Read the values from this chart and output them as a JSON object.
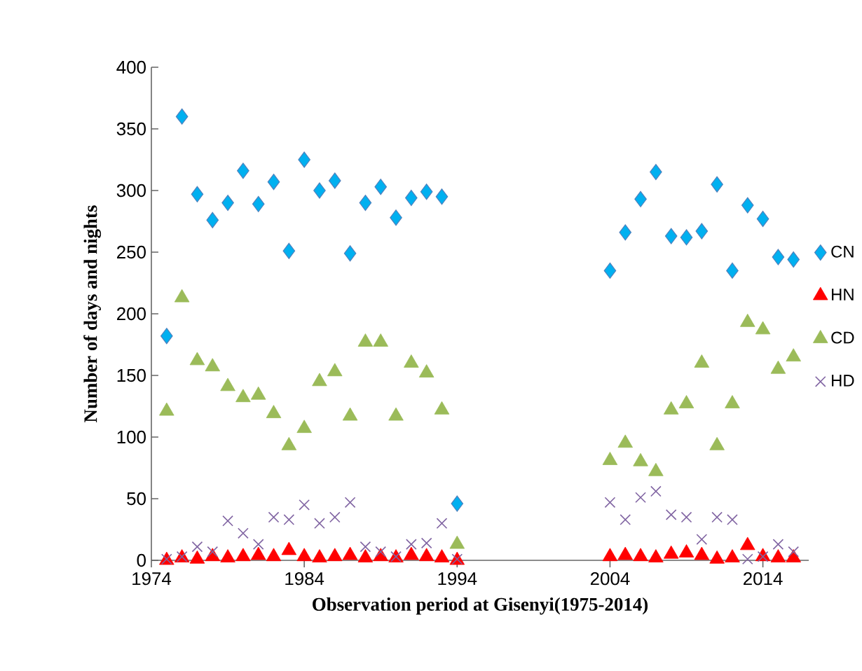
{
  "chart_data": {
    "type": "scatter",
    "xlabel": "Observation period at Gisenyi(1975-2014)",
    "ylabel": "Number of days and nights",
    "x": [
      1975,
      1976,
      1977,
      1978,
      1979,
      1980,
      1981,
      1982,
      1983,
      1984,
      1985,
      1986,
      1987,
      1988,
      1989,
      1990,
      1991,
      1992,
      1993,
      1994,
      2004,
      2005,
      2006,
      2007,
      2008,
      2009,
      2010,
      2011,
      2012,
      2013,
      2014,
      2015,
      2016
    ],
    "series": [
      {
        "name": "CN",
        "color": "#00b0f0",
        "marker": "diamond",
        "values": [
          182,
          360,
          297,
          276,
          290,
          316,
          289,
          307,
          251,
          325,
          300,
          308,
          249,
          290,
          303,
          278,
          294,
          299,
          295,
          46,
          235,
          266,
          293,
          315,
          263,
          262,
          267,
          305,
          235,
          288,
          277,
          246,
          244
        ]
      },
      {
        "name": "HN",
        "color": "#ff0000",
        "marker": "triangle",
        "values": [
          0,
          2,
          1,
          3,
          2,
          3,
          4,
          3,
          8,
          3,
          2,
          3,
          4,
          2,
          3,
          2,
          4,
          3,
          2,
          0,
          3,
          4,
          3,
          2,
          5,
          6,
          4,
          1,
          2,
          12,
          3,
          2,
          2
        ]
      },
      {
        "name": "CD",
        "color": "#9bbb59",
        "marker": "triangle",
        "values": [
          121,
          213,
          162,
          157,
          141,
          132,
          134,
          119,
          93,
          107,
          145,
          153,
          117,
          177,
          177,
          117,
          160,
          152,
          122,
          13,
          81,
          95,
          80,
          72,
          122,
          127,
          160,
          93,
          127,
          193,
          187,
          155,
          165
        ]
      },
      {
        "name": "HD",
        "color": "#8064a2",
        "marker": "cross",
        "values": [
          1,
          3,
          11,
          7,
          32,
          22,
          13,
          35,
          33,
          45,
          30,
          35,
          47,
          11,
          7,
          3,
          13,
          14,
          30,
          1,
          47,
          33,
          51,
          56,
          37,
          35,
          17,
          35,
          33,
          1,
          3,
          13,
          7
        ]
      }
    ],
    "xlim": [
      1974,
      2017
    ],
    "xticks": [
      1974,
      1984,
      1994,
      2004,
      2014
    ],
    "ylim": [
      0,
      400
    ],
    "yticks": [
      0,
      50,
      100,
      150,
      200,
      250,
      300,
      350,
      400
    ],
    "grid": false,
    "legend": "right"
  }
}
